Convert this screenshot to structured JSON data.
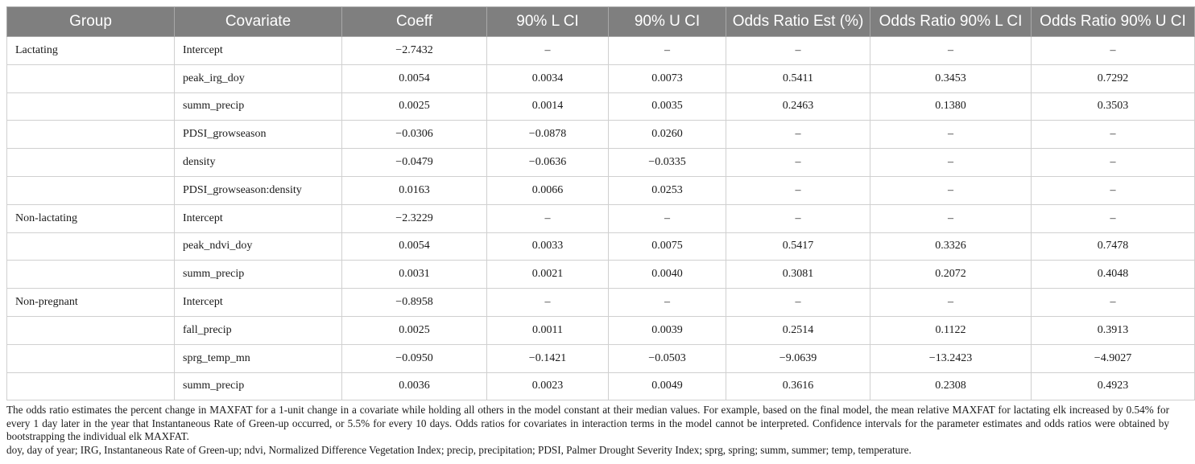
{
  "table": {
    "headers": [
      "Group",
      "Covariate",
      "Coeff",
      "90% L CI",
      "90% U CI",
      "Odds Ratio Est (%)",
      "Odds Ratio 90% L CI",
      "Odds Ratio 90% U CI"
    ],
    "rows": [
      [
        "Lactating",
        "Intercept",
        "−2.7432",
        "–",
        "–",
        "–",
        "–",
        "–"
      ],
      [
        "",
        "peak_irg_doy",
        "0.0054",
        "0.0034",
        "0.0073",
        "0.5411",
        "0.3453",
        "0.7292"
      ],
      [
        "",
        "summ_precip",
        "0.0025",
        "0.0014",
        "0.0035",
        "0.2463",
        "0.1380",
        "0.3503"
      ],
      [
        "",
        "PDSI_growseason",
        "−0.0306",
        "−0.0878",
        "0.0260",
        "–",
        "–",
        "–"
      ],
      [
        "",
        "density",
        "−0.0479",
        "−0.0636",
        "−0.0335",
        "–",
        "–",
        "–"
      ],
      [
        "",
        "PDSI_growseason:density",
        "0.0163",
        "0.0066",
        "0.0253",
        "–",
        "–",
        "–"
      ],
      [
        "Non-lactating",
        "Intercept",
        "−2.3229",
        "–",
        "–",
        "–",
        "–",
        "–"
      ],
      [
        "",
        "peak_ndvi_doy",
        "0.0054",
        "0.0033",
        "0.0075",
        "0.5417",
        "0.3326",
        "0.7478"
      ],
      [
        "",
        "summ_precip",
        "0.0031",
        "0.0021",
        "0.0040",
        "0.3081",
        "0.2072",
        "0.4048"
      ],
      [
        "Non-pregnant",
        "Intercept",
        "−0.8958",
        "–",
        "–",
        "–",
        "–",
        "–"
      ],
      [
        "",
        "fall_precip",
        "0.0025",
        "0.0011",
        "0.0039",
        "0.2514",
        "0.1122",
        "0.3913"
      ],
      [
        "",
        "sprg_temp_mn",
        "−0.0950",
        "−0.1421",
        "−0.0503",
        "−9.0639",
        "−13.2423",
        "−4.9027"
      ],
      [
        "",
        "summ_precip",
        "0.0036",
        "0.0023",
        "0.0049",
        "0.3616",
        "0.2308",
        "0.4923"
      ]
    ]
  },
  "footnotes": {
    "note1": "The odds ratio estimates the percent change in MAXFAT for a 1-unit change in a covariate while holding all others in the model constant at their median values. For example, based on the final model, the mean relative MAXFAT for lactating elk increased by 0.54% for every 1 day later in the year that Instantaneous Rate of Green-up occurred, or 5.5% for every 10 days. Odds ratios for covariates in interaction terms in the model cannot be interpreted. Confidence intervals for the parameter estimates and odds ratios were obtained by bootstrapping the individual elk MAXFAT.",
    "note2": "doy, day of year; IRG, Instantaneous Rate of Green-up; ndvi, Normalized Difference Vegetation Index; precip, precipitation; PDSI, Palmer Drought Severity Index; sprg, spring; summ, summer; temp, temperature."
  }
}
